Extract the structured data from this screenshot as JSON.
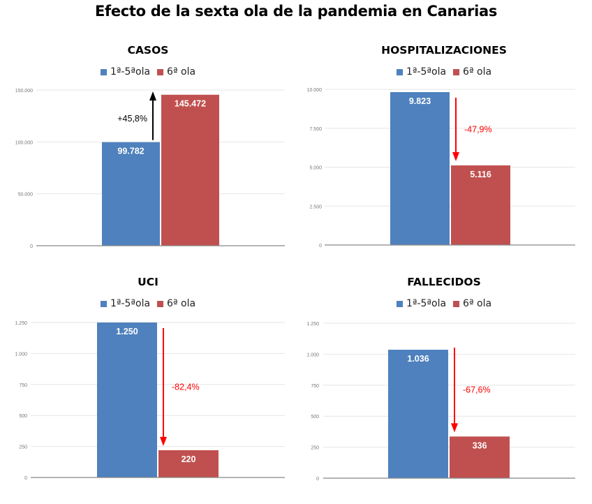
{
  "title": "Efecto de la sexta ola de la pandemia en Canarias",
  "colors": {
    "series1": "#4e81bd",
    "series2": "#c0504f",
    "arrow_up": "#000000",
    "arrow_down": "#ff0000",
    "grid": "#e6e6e6",
    "axis": "#888888",
    "tick_text": "#777777"
  },
  "chart_data": [
    {
      "type": "bar",
      "title": "CASOS",
      "legend": [
        "1ª-5ªola",
        "6ª ola"
      ],
      "legend_position": "top-center",
      "categories": [
        ""
      ],
      "series": [
        {
          "name": "1ª-5ªola",
          "values": [
            99782
          ],
          "label": "99.782"
        },
        {
          "name": "6ª ola",
          "values": [
            145472
          ],
          "label": "145.472"
        }
      ],
      "ylim": [
        0,
        150000
      ],
      "yticks": [
        0,
        50000,
        100000,
        150000
      ],
      "ytick_labels": [
        "0",
        "50.000",
        "100.000",
        "150.000"
      ],
      "grid": true,
      "annotation": {
        "text": "+45,8%",
        "direction": "up"
      }
    },
    {
      "type": "bar",
      "title": "HOSPITALIZACIONES",
      "legend": [
        "1ª-5ªola",
        "6ª ola"
      ],
      "legend_position": "top-center",
      "categories": [
        ""
      ],
      "series": [
        {
          "name": "1ª-5ªola",
          "values": [
            9823
          ],
          "label": "9.823"
        },
        {
          "name": "6ª ola",
          "values": [
            5116
          ],
          "label": "5.116"
        }
      ],
      "ylim": [
        0,
        10000
      ],
      "yticks": [
        0,
        2500,
        5000,
        7500,
        10000
      ],
      "ytick_labels": [
        "0",
        "2.500",
        "5.000",
        "7.500",
        "10.000"
      ],
      "grid": true,
      "annotation": {
        "text": "-47,9%",
        "direction": "down"
      }
    },
    {
      "type": "bar",
      "title": "UCI",
      "legend": [
        "1ª-5ªola",
        "6ª ola"
      ],
      "legend_position": "top-center",
      "categories": [
        ""
      ],
      "series": [
        {
          "name": "1ª-5ªola",
          "values": [
            1250
          ],
          "label": "1.250"
        },
        {
          "name": "6ª ola",
          "values": [
            220
          ],
          "label": "220"
        }
      ],
      "ylim": [
        0,
        1250
      ],
      "yticks": [
        0,
        250,
        500,
        750,
        1000,
        1250
      ],
      "ytick_labels": [
        "0",
        "250",
        "500",
        "750",
        "1.000",
        "1.250"
      ],
      "grid": true,
      "annotation": {
        "text": "-82,4%",
        "direction": "down"
      }
    },
    {
      "type": "bar",
      "title": "FALLECIDOS",
      "legend": [
        "1ª-5ªola",
        "6ª ola"
      ],
      "legend_position": "top-center",
      "categories": [
        ""
      ],
      "series": [
        {
          "name": "1ª-5ªola",
          "values": [
            1036
          ],
          "label": "1.036"
        },
        {
          "name": "6ª ola",
          "values": [
            336
          ],
          "label": "336"
        }
      ],
      "ylim": [
        0,
        1250
      ],
      "yticks": [
        0,
        250,
        500,
        750,
        1000,
        1250
      ],
      "ytick_labels": [
        "0",
        "250",
        "500",
        "750",
        "1.000",
        "1.250"
      ],
      "grid": true,
      "annotation": {
        "text": "-67,6%",
        "direction": "down"
      }
    }
  ]
}
